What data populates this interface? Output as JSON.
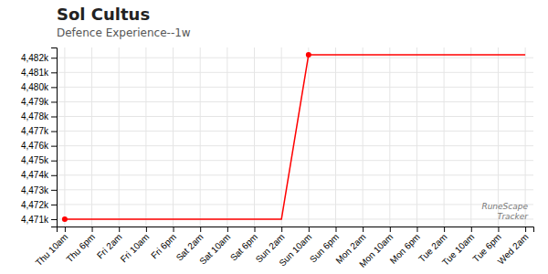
{
  "chart_data": {
    "type": "line",
    "title": "Sol Cultus",
    "subtitle": "Defence Experience--1w",
    "categories": [
      "Thu 10am",
      "Thu 6pm",
      "Fri 2am",
      "Fri 10am",
      "Fri 6pm",
      "Sat 2am",
      "Sat 10am",
      "Sat 6pm",
      "Sun 2am",
      "Sun 10am",
      "Sun 6pm",
      "Mon 2am",
      "Mon 10am",
      "Mon 6pm",
      "Tue 2am",
      "Tue 10am",
      "Tue 6pm",
      "Wed 2am"
    ],
    "values": [
      4471000,
      4471000,
      4471000,
      4471000,
      4471000,
      4471000,
      4471000,
      4471000,
      4471000,
      4482200,
      4482200,
      4482200,
      4482200,
      4482200,
      4482200,
      4482200,
      4482200,
      4482200
    ],
    "color": "#ff0000",
    "ylim": [
      4470500,
      4482700
    ],
    "yticks": [
      {
        "value": 4471000,
        "label": "4,471k"
      },
      {
        "value": 4472000,
        "label": "4,472k"
      },
      {
        "value": 4473000,
        "label": "4,473k"
      },
      {
        "value": 4474000,
        "label": "4,474k"
      },
      {
        "value": 4475000,
        "label": "4,475k"
      },
      {
        "value": 4476000,
        "label": "4,476k"
      },
      {
        "value": 4477000,
        "label": "4,477k"
      },
      {
        "value": 4478000,
        "label": "4,478k"
      },
      {
        "value": 4479000,
        "label": "4,479k"
      },
      {
        "value": 4480000,
        "label": "4,480k"
      },
      {
        "value": 4481000,
        "label": "4,481k"
      },
      {
        "value": 4482000,
        "label": "4,482k"
      }
    ],
    "grid": true,
    "annotations": [
      "RuneScape\nTracker"
    ]
  }
}
